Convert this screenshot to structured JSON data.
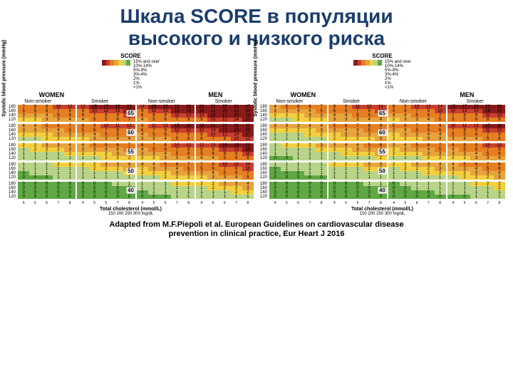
{
  "title_line1": "Шкала SCORE в популяции",
  "title_line2": "высокого и низкого риска",
  "footer_line1": "Adapted from M.F.Piepoli et al. European Guidelines on cardiovascular disease",
  "footer_line2": "prevention in clinical practice, Eur Heart J 2016",
  "colors": {
    "green": "#5fa843",
    "yellow": "#f4d03f",
    "orange": "#e67e22",
    "red": "#cb3f2e",
    "darkred": "#8b1a1a"
  },
  "score_header": "SCORE",
  "legend_items": [
    "15% and over",
    "10%-14%",
    "5%-9%",
    "3%-4%",
    "2%",
    "1%",
    "<1%"
  ],
  "sex_labels": [
    "WOMEN",
    "MEN"
  ],
  "smoke_labels": [
    "Non-smoker",
    "Smoker",
    "Non-smoker",
    "Smoker"
  ],
  "age_label": "Age",
  "ages": [
    "65",
    "60",
    "55",
    "50",
    "40"
  ],
  "sbp_labels": [
    "180",
    "160",
    "140",
    "120"
  ],
  "y_axis_label": "Systolic blood pressure (mmHg)",
  "x_ticks": [
    "4",
    "5",
    "6",
    "7",
    "8"
  ],
  "x_ticks2": [
    "150",
    "200",
    "250",
    "300"
  ],
  "x_label": "Total cholesterol (mmol/L)",
  "x_label2": "mg/dL",
  "high_risk": {
    "65": [
      [
        [
          7,
          8,
          9,
          10,
          12
        ],
        [
          13,
          15,
          17,
          19,
          22
        ],
        [
          14,
          16,
          19,
          22,
          26
        ],
        [
          26,
          30,
          35,
          41,
          47
        ]
      ],
      [
        [
          5,
          5,
          6,
          7,
          8
        ],
        [
          9,
          10,
          12,
          13,
          16
        ],
        [
          9,
          11,
          13,
          15,
          18
        ],
        [
          18,
          21,
          25,
          29,
          34
        ]
      ],
      [
        [
          3,
          3,
          4,
          5,
          6
        ],
        [
          6,
          7,
          8,
          9,
          11
        ],
        [
          6,
          8,
          9,
          11,
          13
        ],
        [
          13,
          15,
          17,
          20,
          24
        ]
      ],
      [
        [
          2,
          2,
          3,
          3,
          4
        ],
        [
          4,
          5,
          5,
          6,
          7
        ],
        [
          4,
          5,
          6,
          7,
          9
        ],
        [
          9,
          10,
          12,
          14,
          17
        ]
      ]
    ],
    "60": [
      [
        [
          4,
          4,
          5,
          6,
          7
        ],
        [
          8,
          9,
          10,
          11,
          13
        ],
        [
          9,
          11,
          13,
          15,
          18
        ],
        [
          18,
          21,
          24,
          28,
          33
        ]
      ],
      [
        [
          3,
          3,
          3,
          4,
          5
        ],
        [
          5,
          6,
          7,
          8,
          9
        ],
        [
          6,
          7,
          9,
          10,
          12
        ],
        [
          12,
          14,
          17,
          20,
          24
        ]
      ],
      [
        [
          2,
          2,
          2,
          3,
          3
        ],
        [
          3,
          4,
          5,
          5,
          6
        ],
        [
          4,
          5,
          6,
          7,
          9
        ],
        [
          8,
          10,
          12,
          14,
          17
        ]
      ],
      [
        [
          1,
          1,
          2,
          2,
          2
        ],
        [
          2,
          3,
          3,
          4,
          4
        ],
        [
          3,
          3,
          4,
          5,
          6
        ],
        [
          6,
          7,
          8,
          10,
          12
        ]
      ]
    ],
    "55": [
      [
        [
          2,
          2,
          3,
          3,
          4
        ],
        [
          4,
          5,
          5,
          6,
          7
        ],
        [
          6,
          7,
          8,
          10,
          12
        ],
        [
          12,
          13,
          16,
          19,
          22
        ]
      ],
      [
        [
          1,
          2,
          2,
          2,
          3
        ],
        [
          3,
          3,
          4,
          4,
          5
        ],
        [
          4,
          5,
          6,
          7,
          8
        ],
        [
          8,
          9,
          11,
          13,
          16
        ]
      ],
      [
        [
          1,
          1,
          1,
          1,
          2
        ],
        [
          2,
          2,
          2,
          3,
          3
        ],
        [
          3,
          3,
          4,
          5,
          6
        ],
        [
          5,
          6,
          8,
          9,
          11
        ]
      ],
      [
        [
          1,
          1,
          1,
          1,
          1
        ],
        [
          1,
          1,
          2,
          2,
          2
        ],
        [
          2,
          2,
          3,
          3,
          4
        ],
        [
          4,
          4,
          5,
          6,
          8
        ]
      ]
    ],
    "50": [
      [
        [
          1,
          1,
          1,
          2,
          2
        ],
        [
          2,
          2,
          3,
          3,
          4
        ],
        [
          4,
          4,
          5,
          6,
          7
        ],
        [
          7,
          8,
          10,
          12,
          14
        ]
      ],
      [
        [
          1,
          1,
          1,
          1,
          1
        ],
        [
          1,
          2,
          2,
          2,
          3
        ],
        [
          2,
          3,
          3,
          4,
          5
        ],
        [
          5,
          6,
          7,
          8,
          10
        ]
      ],
      [
        [
          0,
          1,
          1,
          1,
          1
        ],
        [
          1,
          1,
          1,
          1,
          2
        ],
        [
          2,
          2,
          2,
          3,
          3
        ],
        [
          3,
          4,
          5,
          6,
          7
        ]
      ],
      [
        [
          0,
          0,
          0,
          1,
          1
        ],
        [
          1,
          1,
          1,
          1,
          1
        ],
        [
          1,
          1,
          2,
          2,
          2
        ],
        [
          2,
          3,
          3,
          4,
          5
        ]
      ]
    ],
    "40": [
      [
        [
          0,
          0,
          0,
          0,
          0
        ],
        [
          0,
          0,
          0,
          1,
          1
        ],
        [
          1,
          1,
          1,
          2,
          2
        ],
        [
          2,
          2,
          3,
          3,
          4
        ]
      ],
      [
        [
          0,
          0,
          0,
          0,
          0
        ],
        [
          0,
          0,
          0,
          0,
          0
        ],
        [
          1,
          1,
          1,
          1,
          1
        ],
        [
          1,
          2,
          2,
          2,
          3
        ]
      ],
      [
        [
          0,
          0,
          0,
          0,
          0
        ],
        [
          0,
          0,
          0,
          0,
          0
        ],
        [
          0,
          1,
          1,
          1,
          1
        ],
        [
          1,
          1,
          1,
          2,
          2
        ]
      ],
      [
        [
          0,
          0,
          0,
          0,
          0
        ],
        [
          0,
          0,
          0,
          0,
          0
        ],
        [
          0,
          0,
          0,
          1,
          1
        ],
        [
          1,
          1,
          1,
          1,
          1
        ]
      ]
    ]
  },
  "low_risk": {
    "65": [
      [
        [
          4,
          5,
          6,
          6,
          7
        ],
        [
          9,
          9,
          11,
          12,
          14
        ],
        [
          8,
          9,
          10,
          12,
          14
        ],
        [
          15,
          17,
          20,
          23,
          26
        ]
      ],
      [
        [
          3,
          3,
          4,
          4,
          5
        ],
        [
          6,
          6,
          7,
          8,
          10
        ],
        [
          5,
          6,
          7,
          8,
          10
        ],
        [
          10,
          12,
          14,
          16,
          19
        ]
      ],
      [
        [
          2,
          2,
          2,
          3,
          3
        ],
        [
          4,
          4,
          5,
          6,
          7
        ],
        [
          4,
          4,
          5,
          6,
          7
        ],
        [
          7,
          8,
          9,
          11,
          13
        ]
      ],
      [
        [
          1,
          1,
          2,
          2,
          2
        ],
        [
          3,
          3,
          3,
          4,
          4
        ],
        [
          2,
          3,
          3,
          4,
          5
        ],
        [
          5,
          5,
          6,
          8,
          9
        ]
      ]
    ],
    "60": [
      [
        [
          3,
          3,
          3,
          4,
          4
        ],
        [
          5,
          6,
          7,
          8,
          9
        ],
        [
          5,
          6,
          7,
          8,
          9
        ],
        [
          10,
          11,
          13,
          15,
          18
        ]
      ],
      [
        [
          2,
          2,
          2,
          2,
          3
        ],
        [
          3,
          4,
          4,
          5,
          6
        ],
        [
          3,
          4,
          5,
          5,
          6
        ],
        [
          7,
          8,
          9,
          11,
          13
        ]
      ],
      [
        [
          1,
          1,
          1,
          2,
          2
        ],
        [
          2,
          3,
          3,
          3,
          4
        ],
        [
          2,
          3,
          3,
          4,
          4
        ],
        [
          5,
          5,
          6,
          7,
          9
        ]
      ],
      [
        [
          1,
          1,
          1,
          1,
          1
        ],
        [
          2,
          2,
          2,
          2,
          3
        ],
        [
          2,
          2,
          2,
          3,
          3
        ],
        [
          3,
          4,
          4,
          5,
          6
        ]
      ]
    ],
    "55": [
      [
        [
          1,
          2,
          2,
          2,
          3
        ],
        [
          3,
          4,
          4,
          5,
          6
        ],
        [
          3,
          4,
          5,
          6,
          7
        ],
        [
          6,
          8,
          9,
          10,
          12
        ]
      ],
      [
        [
          1,
          1,
          1,
          1,
          2
        ],
        [
          2,
          2,
          3,
          3,
          4
        ],
        [
          2,
          3,
          3,
          4,
          5
        ],
        [
          4,
          5,
          6,
          7,
          8
        ]
      ],
      [
        [
          1,
          1,
          1,
          1,
          1
        ],
        [
          1,
          2,
          2,
          2,
          3
        ],
        [
          2,
          2,
          2,
          3,
          3
        ],
        [
          3,
          3,
          4,
          5,
          6
        ]
      ],
      [
        [
          0,
          0,
          1,
          1,
          1
        ],
        [
          1,
          1,
          1,
          1,
          2
        ],
        [
          1,
          1,
          1,
          2,
          2
        ],
        [
          2,
          2,
          3,
          3,
          4
        ]
      ]
    ],
    "50": [
      [
        [
          1,
          1,
          1,
          1,
          1
        ],
        [
          2,
          2,
          2,
          3,
          3
        ],
        [
          2,
          2,
          3,
          3,
          4
        ],
        [
          4,
          5,
          6,
          7,
          8
        ]
      ],
      [
        [
          0,
          1,
          1,
          1,
          1
        ],
        [
          1,
          1,
          1,
          2,
          2
        ],
        [
          1,
          2,
          2,
          2,
          3
        ],
        [
          3,
          3,
          4,
          5,
          6
        ]
      ],
      [
        [
          0,
          0,
          0,
          1,
          1
        ],
        [
          1,
          1,
          1,
          1,
          1
        ],
        [
          1,
          1,
          1,
          2,
          2
        ],
        [
          2,
          2,
          3,
          3,
          4
        ]
      ],
      [
        [
          0,
          0,
          0,
          0,
          0
        ],
        [
          1,
          1,
          1,
          1,
          1
        ],
        [
          1,
          1,
          1,
          1,
          1
        ],
        [
          1,
          2,
          2,
          2,
          3
        ]
      ]
    ],
    "40": [
      [
        [
          0,
          0,
          0,
          0,
          0
        ],
        [
          0,
          0,
          0,
          1,
          1
        ],
        [
          0,
          1,
          1,
          1,
          1
        ],
        [
          1,
          1,
          2,
          2,
          2
        ]
      ],
      [
        [
          0,
          0,
          0,
          0,
          0
        ],
        [
          0,
          0,
          0,
          0,
          0
        ],
        [
          0,
          0,
          1,
          1,
          1
        ],
        [
          1,
          1,
          1,
          1,
          2
        ]
      ],
      [
        [
          0,
          0,
          0,
          0,
          0
        ],
        [
          0,
          0,
          0,
          0,
          0
        ],
        [
          0,
          0,
          0,
          0,
          1
        ],
        [
          1,
          1,
          1,
          1,
          1
        ]
      ],
      [
        [
          0,
          0,
          0,
          0,
          0
        ],
        [
          0,
          0,
          0,
          0,
          0
        ],
        [
          0,
          0,
          0,
          0,
          0
        ],
        [
          0,
          0,
          1,
          1,
          1
        ]
      ]
    ]
  }
}
